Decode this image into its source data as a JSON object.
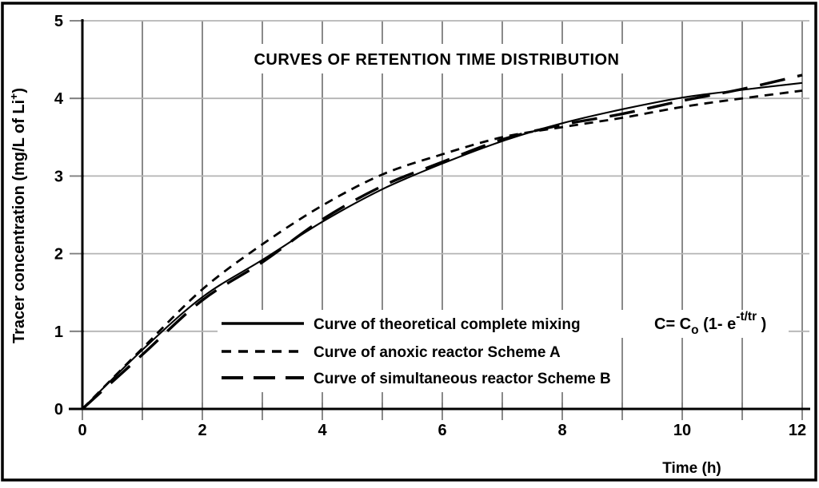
{
  "figure": {
    "background": "#ffffff",
    "frame_color": "#000000"
  },
  "chart_data": {
    "type": "line",
    "title": "CURVES OF RETENTION TIME DISTRIBUTION",
    "xlabel": "Time  (h)",
    "ylabel": "Tracer concentration  (mg/L of Li+)",
    "ylabel_parts": {
      "base": "Tracer concentration  (mg/L of Li",
      "sup": "+",
      "close": ")"
    },
    "xlim": [
      0,
      12
    ],
    "ylim": [
      0,
      5
    ],
    "x_tick_values": [
      0,
      2,
      4,
      6,
      8,
      10,
      12
    ],
    "x_tick_labels": [
      "0",
      "2",
      "4",
      "6",
      "8",
      "10",
      "12"
    ],
    "x_minor_grid_step": 1,
    "y_tick_values": [
      0,
      1,
      2,
      3,
      4,
      5
    ],
    "y_tick_labels": [
      "0",
      "1",
      "2",
      "3",
      "4",
      "5"
    ],
    "grid": "on",
    "x": [
      0,
      1,
      2,
      3,
      4,
      5,
      6,
      7,
      8,
      9,
      10,
      11,
      12
    ],
    "series": [
      {
        "name": "Curve of theoretical complete mixing",
        "line_style": "solid",
        "values": [
          0,
          0.76,
          1.44,
          1.92,
          2.41,
          2.83,
          3.16,
          3.45,
          3.68,
          3.86,
          4.01,
          4.11,
          4.2
        ]
      },
      {
        "name": "Curve of anoxic reactor Scheme A",
        "line_style": "dashed",
        "values": [
          0,
          0.78,
          1.54,
          2.12,
          2.62,
          3.02,
          3.28,
          3.5,
          3.63,
          3.75,
          3.89,
          4.0,
          4.1
        ]
      },
      {
        "name": "Curve of simultaneous reactor Scheme B",
        "line_style": "long-dash",
        "values": [
          0,
          0.7,
          1.4,
          1.89,
          2.44,
          2.87,
          3.18,
          3.47,
          3.66,
          3.8,
          3.97,
          4.12,
          4.3
        ]
      }
    ],
    "legend": {
      "position": "inside-lower-center",
      "entries": [
        "Curve of theoretical complete mixing",
        "Curve of anoxic reactor Scheme A",
        "Curve of simultaneous reactor Scheme B"
      ],
      "formula": "C= Co (1- e-t/tr )",
      "formula_parts": [
        {
          "text": "C= C",
          "script": "none"
        },
        {
          "text": "o",
          "script": "sub"
        },
        {
          "text": " (1- e",
          "script": "none"
        },
        {
          "text": "-t/tr",
          "script": "sup"
        },
        {
          "text": " )",
          "script": "none"
        }
      ]
    },
    "colors": {
      "line": "#000000",
      "grid_vertical": "#7d7d7d",
      "grid_horizontal": "#b4b4b4",
      "axis": "#000000",
      "background": "#ffffff"
    }
  }
}
